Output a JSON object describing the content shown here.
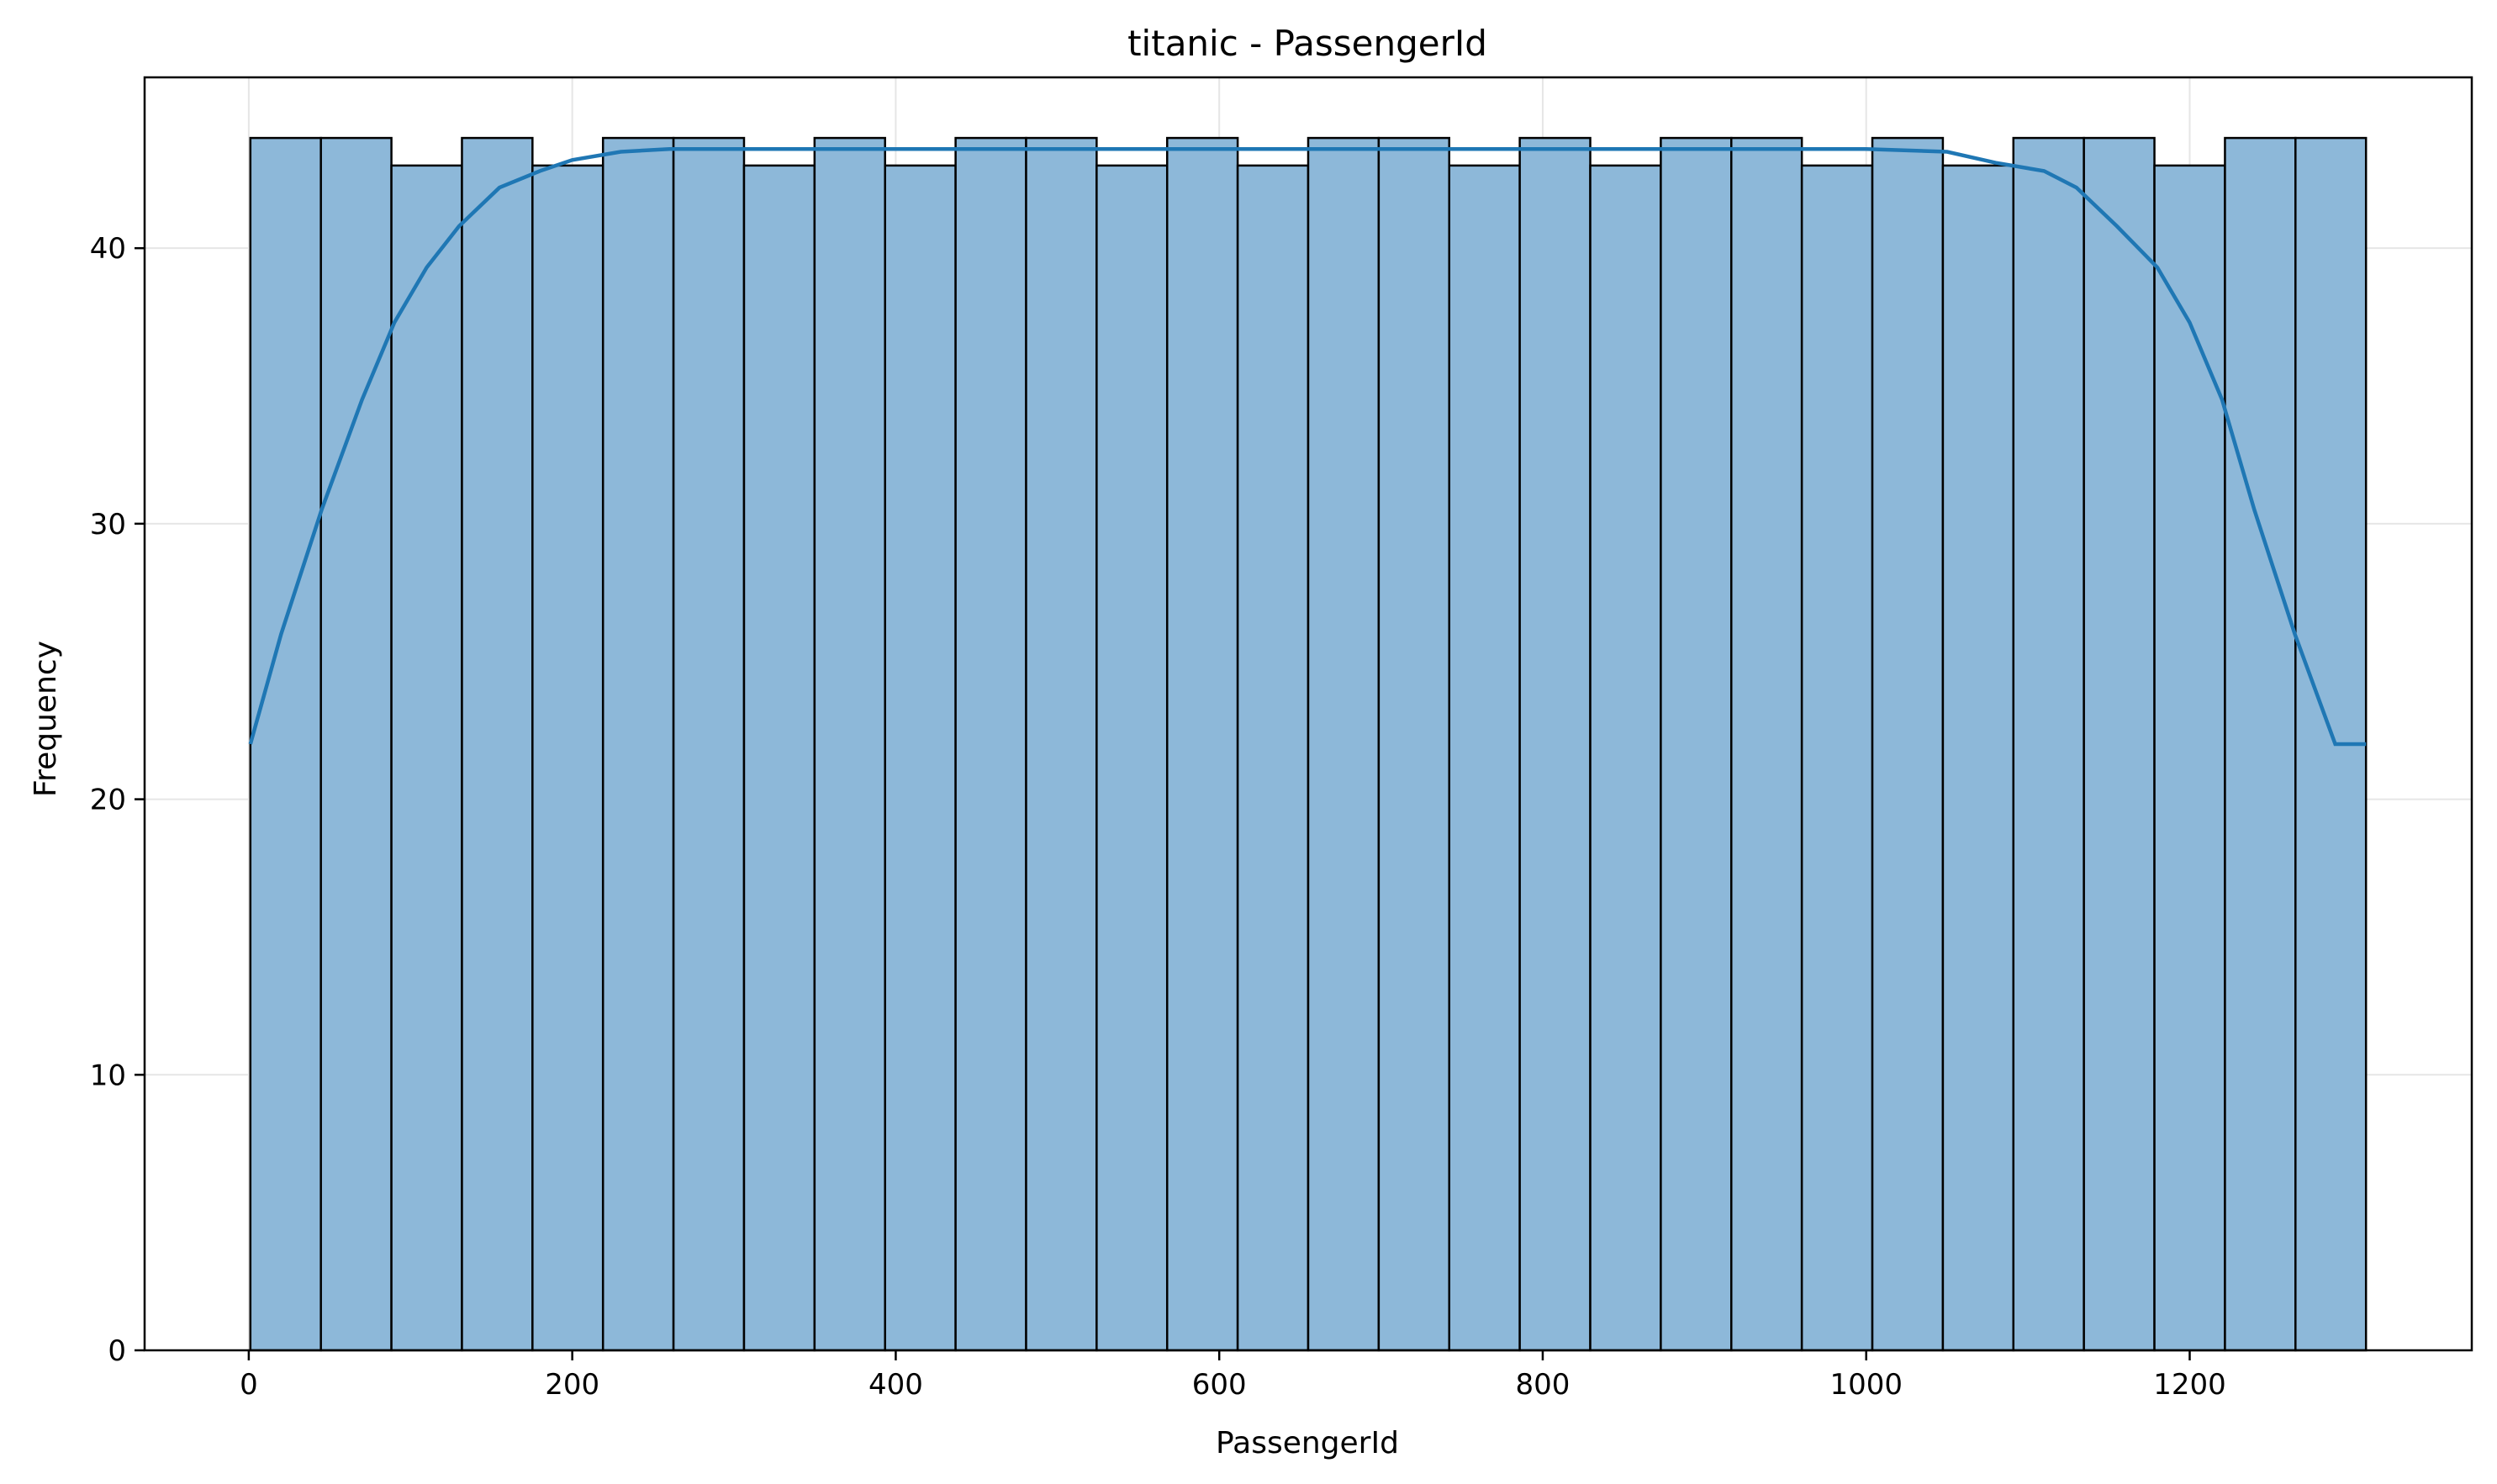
{
  "chart_data": {
    "type": "bar",
    "subtype": "histogram",
    "title": "titanic - PassengerId",
    "xlabel": "PassengerId",
    "ylabel": "Frequency",
    "xlim": [
      -64.4,
      1374.4
    ],
    "ylim": [
      0,
      46.2
    ],
    "xticks": [
      0,
      200,
      400,
      600,
      800,
      1000,
      1200
    ],
    "yticks": [
      0,
      10,
      20,
      30,
      40
    ],
    "grid": true,
    "bin_start": 1,
    "bin_end": 1309,
    "values": [
      44,
      44,
      43,
      44,
      43,
      44,
      44,
      43,
      44,
      43,
      44,
      44,
      43,
      44,
      43,
      44,
      44,
      43,
      44,
      43,
      44,
      44,
      43,
      44,
      43,
      44,
      44,
      43,
      44,
      44
    ],
    "bar_color": "#8db8d9",
    "edge_color": "#000000",
    "kde": {
      "color": "#1f77b4",
      "x": [
        1,
        20,
        45,
        70,
        90,
        110,
        130,
        155,
        180,
        200,
        230,
        260,
        300,
        400,
        500,
        600,
        700,
        800,
        900,
        1000,
        1050,
        1080,
        1110,
        1130,
        1155,
        1180,
        1200,
        1220,
        1240,
        1265,
        1290,
        1309
      ],
      "y": [
        22,
        26,
        30.5,
        34.5,
        37.3,
        39.3,
        40.8,
        42.2,
        42.8,
        43.2,
        43.5,
        43.6,
        43.6,
        43.6,
        43.6,
        43.6,
        43.6,
        43.6,
        43.6,
        43.6,
        43.5,
        43.1,
        42.8,
        42.2,
        40.8,
        39.3,
        37.3,
        34.5,
        30.5,
        26,
        22,
        22
      ]
    }
  }
}
